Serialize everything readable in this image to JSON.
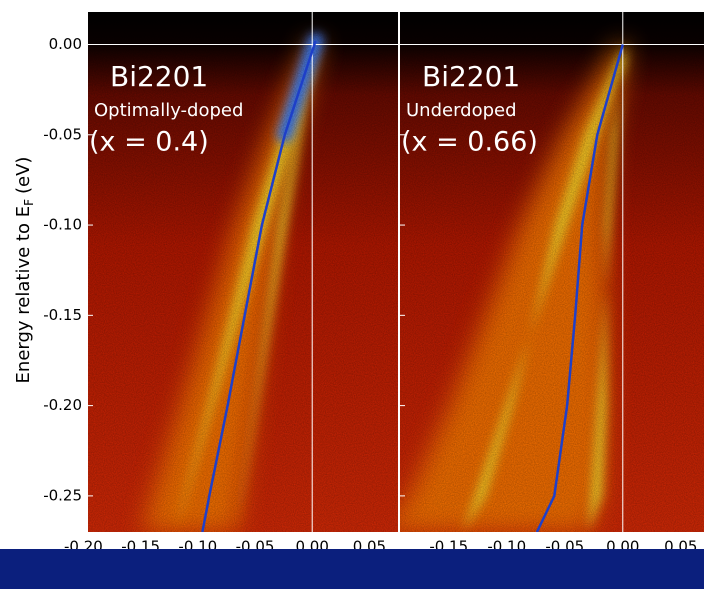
{
  "chart_data": [
    {
      "type": "line",
      "labels": [
        "Bi2201",
        "Optimally-doped",
        "(x = 0.4)"
      ],
      "ylabel": [
        "Energy relative to E",
        "F",
        "(eV)"
      ],
      "xlim": [
        -0.196,
        0.075
      ],
      "xticks": [
        {
          "value": -0.2,
          "label": "-0.20"
        },
        {
          "value": -0.15,
          "label": "-0.15"
        },
        {
          "value": -0.1,
          "label": "-0.10"
        },
        {
          "value": -0.05,
          "label": "-0.05"
        },
        {
          "value": 0,
          "label": "0.00"
        },
        {
          "value": 0.05,
          "label": "0.05"
        }
      ],
      "ylim": [
        -0.27,
        0.018
      ],
      "yticks": [
        {
          "value": 0,
          "label": "0.00"
        },
        {
          "value": -0.05,
          "label": "-0.05"
        },
        {
          "value": -0.1,
          "label": "-0.10"
        },
        {
          "value": -0.15,
          "label": "-0.15"
        },
        {
          "value": -0.2,
          "label": "-0.20"
        },
        {
          "value": -0.25,
          "label": "-0.25"
        }
      ],
      "series": [
        {
          "color": "#1e3fc8",
          "x": [
            0.003,
            -0.024,
            -0.044,
            -0.059,
            -0.074,
            -0.09,
            -0.096
          ],
          "values": [
            0.002,
            -0.05,
            -0.1,
            -0.15,
            -0.2,
            -0.25,
            -0.27
          ]
        }
      ]
    },
    {
      "type": "line",
      "labels": [
        "Bi2201",
        "Underdoped",
        "(x = 0.66)"
      ],
      "xlim": [
        -0.192,
        0.07
      ],
      "xticks": [
        {
          "value": -0.15,
          "label": "-0.15"
        },
        {
          "value": -0.1,
          "label": "-0.10"
        },
        {
          "value": -0.05,
          "label": "-0.05"
        },
        {
          "value": 0,
          "label": "0.00"
        },
        {
          "value": 0.05,
          "label": "0.05"
        }
      ],
      "ylim": [
        -0.27,
        0.018
      ],
      "series": [
        {
          "color": "#1e3fc8",
          "x": [
            0,
            -0.022,
            -0.035,
            -0.041,
            -0.048,
            -0.059,
            -0.074
          ],
          "values": [
            0,
            -0.05,
            -0.1,
            -0.15,
            -0.2,
            -0.25,
            -0.27
          ]
        }
      ]
    }
  ]
}
